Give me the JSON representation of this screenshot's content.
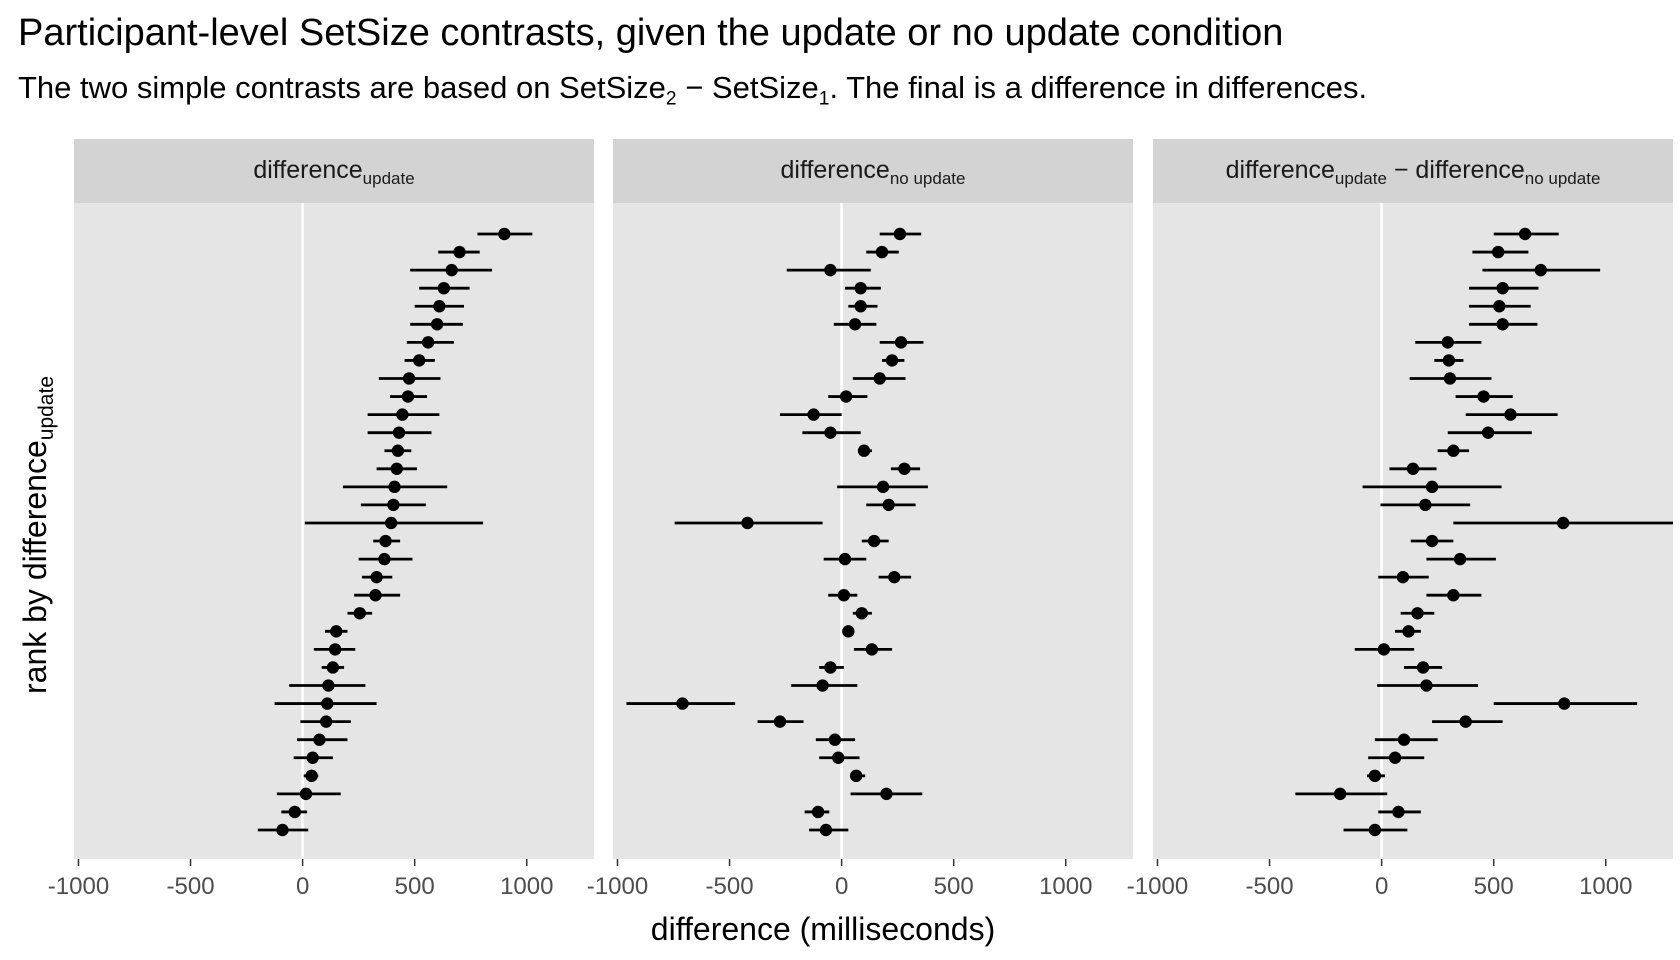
{
  "title": "Participant-level SetSize contrasts, given the update or no update condition",
  "subtitle": {
    "prefix": "The two simple contrasts are based on SetSize",
    "sub_a": "2",
    "minus": " − SetSize",
    "sub_b": "1",
    "suffix": ". The final is a difference in differences."
  },
  "chart_data": {
    "type": "scatter",
    "subtype": "pointrange-facets",
    "xlabel": "difference (milliseconds)",
    "ylabel": {
      "main": "rank by difference",
      "sub": "update"
    },
    "xlim": [
      -1020,
      1300
    ],
    "x_ticks": [
      -1000,
      -500,
      0,
      500,
      1000
    ],
    "x_tick_labels": [
      "-1000",
      "-500",
      "0",
      "500",
      "1000"
    ],
    "reference_line": 0,
    "grid": false,
    "colors": {
      "panel_bg": "#e5e5e5",
      "strip_bg": "#d3d3d3",
      "point": "#000000",
      "reference": "#ffffff",
      "tick": "#4d4d4d"
    },
    "panels": [
      {
        "strip": {
          "main": "difference",
          "sub": "update"
        },
        "points": [
          {
            "est": 900,
            "lo": 780,
            "hi": 1025
          },
          {
            "est": 700,
            "lo": 605,
            "hi": 790
          },
          {
            "est": 665,
            "lo": 480,
            "hi": 845
          },
          {
            "est": 630,
            "lo": 520,
            "hi": 745
          },
          {
            "est": 610,
            "lo": 500,
            "hi": 720
          },
          {
            "est": 600,
            "lo": 480,
            "hi": 715
          },
          {
            "est": 560,
            "lo": 465,
            "hi": 675
          },
          {
            "est": 520,
            "lo": 455,
            "hi": 590
          },
          {
            "est": 475,
            "lo": 340,
            "hi": 615
          },
          {
            "est": 470,
            "lo": 390,
            "hi": 555
          },
          {
            "est": 445,
            "lo": 290,
            "hi": 610
          },
          {
            "est": 430,
            "lo": 290,
            "hi": 575
          },
          {
            "est": 425,
            "lo": 365,
            "hi": 485
          },
          {
            "est": 420,
            "lo": 330,
            "hi": 510
          },
          {
            "est": 410,
            "lo": 180,
            "hi": 645
          },
          {
            "est": 405,
            "lo": 260,
            "hi": 550
          },
          {
            "est": 395,
            "lo": 10,
            "hi": 805
          },
          {
            "est": 370,
            "lo": 315,
            "hi": 435
          },
          {
            "est": 365,
            "lo": 250,
            "hi": 490
          },
          {
            "est": 330,
            "lo": 265,
            "hi": 400
          },
          {
            "est": 325,
            "lo": 230,
            "hi": 435
          },
          {
            "est": 255,
            "lo": 200,
            "hi": 310
          },
          {
            "est": 150,
            "lo": 100,
            "hi": 200
          },
          {
            "est": 145,
            "lo": 50,
            "hi": 235
          },
          {
            "est": 135,
            "lo": 85,
            "hi": 185
          },
          {
            "est": 115,
            "lo": -60,
            "hi": 280
          },
          {
            "est": 110,
            "lo": -125,
            "hi": 330
          },
          {
            "est": 105,
            "lo": -10,
            "hi": 215
          },
          {
            "est": 75,
            "lo": -25,
            "hi": 200
          },
          {
            "est": 45,
            "lo": -40,
            "hi": 135
          },
          {
            "est": 40,
            "lo": 5,
            "hi": 70
          },
          {
            "est": 15,
            "lo": -115,
            "hi": 170
          },
          {
            "est": -35,
            "lo": -95,
            "hi": 20
          },
          {
            "est": -90,
            "lo": -200,
            "hi": 25
          }
        ]
      },
      {
        "strip": {
          "main": "difference",
          "sub": "no update"
        },
        "points": [
          {
            "est": 260,
            "lo": 170,
            "hi": 355
          },
          {
            "est": 180,
            "lo": 110,
            "hi": 255
          },
          {
            "est": -50,
            "lo": -245,
            "hi": 130
          },
          {
            "est": 85,
            "lo": 15,
            "hi": 175
          },
          {
            "est": 85,
            "lo": 30,
            "hi": 160
          },
          {
            "est": 60,
            "lo": -35,
            "hi": 155
          },
          {
            "est": 265,
            "lo": 170,
            "hi": 365
          },
          {
            "est": 225,
            "lo": 180,
            "hi": 280
          },
          {
            "est": 170,
            "lo": 50,
            "hi": 285
          },
          {
            "est": 20,
            "lo": -60,
            "hi": 115
          },
          {
            "est": -125,
            "lo": -275,
            "hi": 0
          },
          {
            "est": -50,
            "lo": -175,
            "hi": 85
          },
          {
            "est": 100,
            "lo": 75,
            "hi": 135
          },
          {
            "est": 280,
            "lo": 220,
            "hi": 350
          },
          {
            "est": 185,
            "lo": -20,
            "hi": 385
          },
          {
            "est": 210,
            "lo": 110,
            "hi": 330
          },
          {
            "est": -420,
            "lo": -745,
            "hi": -85
          },
          {
            "est": 145,
            "lo": 90,
            "hi": 210
          },
          {
            "est": 15,
            "lo": -80,
            "hi": 110
          },
          {
            "est": 235,
            "lo": 165,
            "hi": 310
          },
          {
            "est": 10,
            "lo": -60,
            "hi": 70
          },
          {
            "est": 90,
            "lo": 50,
            "hi": 135
          },
          {
            "est": 30,
            "lo": 20,
            "hi": 40
          },
          {
            "est": 135,
            "lo": 55,
            "hi": 225
          },
          {
            "est": -50,
            "lo": -100,
            "hi": 10
          },
          {
            "est": -85,
            "lo": -225,
            "hi": 70
          },
          {
            "est": -710,
            "lo": -960,
            "hi": -475
          },
          {
            "est": -275,
            "lo": -375,
            "hi": -170
          },
          {
            "est": -30,
            "lo": -115,
            "hi": 60
          },
          {
            "est": -15,
            "lo": -100,
            "hi": 80
          },
          {
            "est": 65,
            "lo": 40,
            "hi": 105
          },
          {
            "est": 200,
            "lo": 40,
            "hi": 360
          },
          {
            "est": -105,
            "lo": -165,
            "hi": -55
          },
          {
            "est": -70,
            "lo": -145,
            "hi": 30
          }
        ]
      },
      {
        "strip": {
          "main": "difference",
          "sub": "update",
          "minus": " − difference",
          "sub2": "no update"
        },
        "points": [
          {
            "est": 640,
            "lo": 500,
            "hi": 790
          },
          {
            "est": 520,
            "lo": 405,
            "hi": 655
          },
          {
            "est": 710,
            "lo": 450,
            "hi": 975
          },
          {
            "est": 540,
            "lo": 390,
            "hi": 700
          },
          {
            "est": 525,
            "lo": 390,
            "hi": 665
          },
          {
            "est": 540,
            "lo": 390,
            "hi": 695
          },
          {
            "est": 295,
            "lo": 150,
            "hi": 445
          },
          {
            "est": 300,
            "lo": 235,
            "hi": 365
          },
          {
            "est": 305,
            "lo": 125,
            "hi": 490
          },
          {
            "est": 455,
            "lo": 330,
            "hi": 585
          },
          {
            "est": 575,
            "lo": 375,
            "hi": 785
          },
          {
            "est": 475,
            "lo": 295,
            "hi": 670
          },
          {
            "est": 320,
            "lo": 250,
            "hi": 390
          },
          {
            "est": 140,
            "lo": 35,
            "hi": 245
          },
          {
            "est": 225,
            "lo": -85,
            "hi": 535
          },
          {
            "est": 195,
            "lo": -5,
            "hi": 395
          },
          {
            "est": 810,
            "lo": 320,
            "hi": 1300
          },
          {
            "est": 225,
            "lo": 130,
            "hi": 320
          },
          {
            "est": 350,
            "lo": 200,
            "hi": 510
          },
          {
            "est": 95,
            "lo": -15,
            "hi": 210
          },
          {
            "est": 320,
            "lo": 200,
            "hi": 445
          },
          {
            "est": 160,
            "lo": 85,
            "hi": 235
          },
          {
            "est": 120,
            "lo": 60,
            "hi": 175
          },
          {
            "est": 10,
            "lo": -120,
            "hi": 145
          },
          {
            "est": 185,
            "lo": 100,
            "hi": 270
          },
          {
            "est": 200,
            "lo": -20,
            "hi": 430
          },
          {
            "est": 815,
            "lo": 500,
            "hi": 1140
          },
          {
            "est": 375,
            "lo": 225,
            "hi": 540
          },
          {
            "est": 100,
            "lo": -30,
            "hi": 250
          },
          {
            "est": 60,
            "lo": -60,
            "hi": 190
          },
          {
            "est": -30,
            "lo": -65,
            "hi": 15
          },
          {
            "est": -185,
            "lo": -385,
            "hi": 25
          },
          {
            "est": 75,
            "lo": -15,
            "hi": 175
          },
          {
            "est": -30,
            "lo": -170,
            "hi": 115
          }
        ]
      }
    ]
  }
}
